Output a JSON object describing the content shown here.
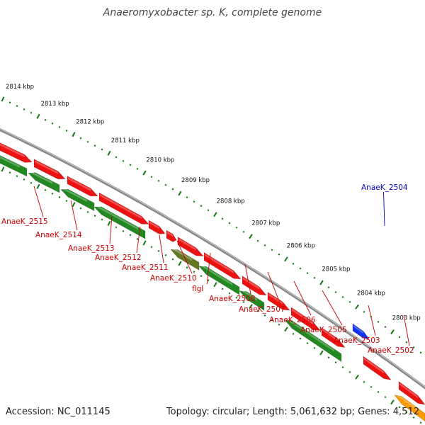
{
  "title": "Anaeromyxobacter sp. K, complete genome",
  "footer": {
    "accession": "Accession: NC_011145",
    "topology": "Topology: circular; Length: 5,061,632 bp; Genes: 4,512"
  },
  "colors": {
    "forward_cds": "#ee1111",
    "reverse_cds": "#228822",
    "special_forward": "#1133ee",
    "special_reverse": "#ff9900",
    "backbone": "#888888",
    "tick": "#117711",
    "label_red": "#cc0000",
    "label_blue": "#0000cc"
  },
  "scale_labels": [
    "2814 kbp",
    "2813 kbp",
    "2812 kbp",
    "2811 kbp",
    "2810 kbp",
    "2809 kbp",
    "2808 kbp",
    "2807 kbp",
    "2806 kbp",
    "2805 kbp",
    "2804 kbp",
    "2803 kbp"
  ],
  "gene_labels": [
    "AnaeK_2515",
    "AnaeK_2514",
    "AnaeK_2513",
    "AnaeK_2512",
    "AnaeK_2511",
    "AnaeK_2510",
    "flgI",
    "AnaeK_2508",
    "AnaeK_2507",
    "AnaeK_2506",
    "AnaeK_2505",
    "AnaeK_2504",
    "AnaeK_2503",
    "AnaeK_2502"
  ]
}
